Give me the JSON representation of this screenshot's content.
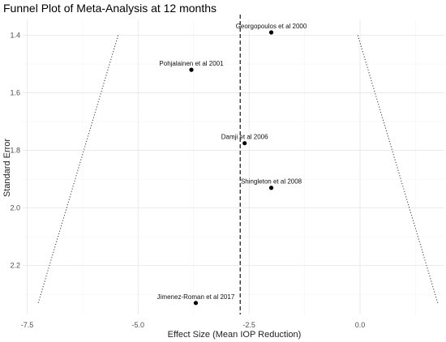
{
  "chart_data": {
    "type": "scatter",
    "title": "Funnel Plot of Meta-Analysis at 12 months",
    "xlabel": "Effect Size (Mean IOP Reduction)",
    "ylabel": "Standard Error",
    "xlim": [
      -7.6,
      1.9
    ],
    "ylim": [
      1.345,
      2.37
    ],
    "y_reversed": true,
    "x_ticks": [
      -7.5,
      -5.0,
      -2.5,
      0.0
    ],
    "x_tick_labels": [
      "-7.5",
      "-5.0",
      "-2.5",
      "0.0"
    ],
    "y_ticks": [
      1.4,
      1.6,
      1.8,
      2.0,
      2.2
    ],
    "y_tick_labels": [
      "1.4",
      "1.6",
      "1.8",
      "2.0",
      "2.2"
    ],
    "grid": true,
    "pooled_effect": -2.7,
    "points": [
      {
        "label": "Georgopoulos et al 2000",
        "x": -2.0,
        "y": 1.39
      },
      {
        "label": "Pohjalainen et al 2001",
        "x": -3.8,
        "y": 1.52
      },
      {
        "label": "Damji et al 2006",
        "x": -2.6,
        "y": 1.775
      },
      {
        "label": "Shingleton et al 2008",
        "x": -2.0,
        "y": 1.93
      },
      {
        "label": "Jimenez-Roman et al 2017",
        "x": -3.7,
        "y": 2.33
      }
    ],
    "funnel_left": [
      [
        -5.45,
        1.4
      ],
      [
        -7.25,
        2.33
      ]
    ],
    "funnel_right": [
      [
        -0.05,
        1.4
      ],
      [
        1.75,
        2.33
      ]
    ]
  }
}
